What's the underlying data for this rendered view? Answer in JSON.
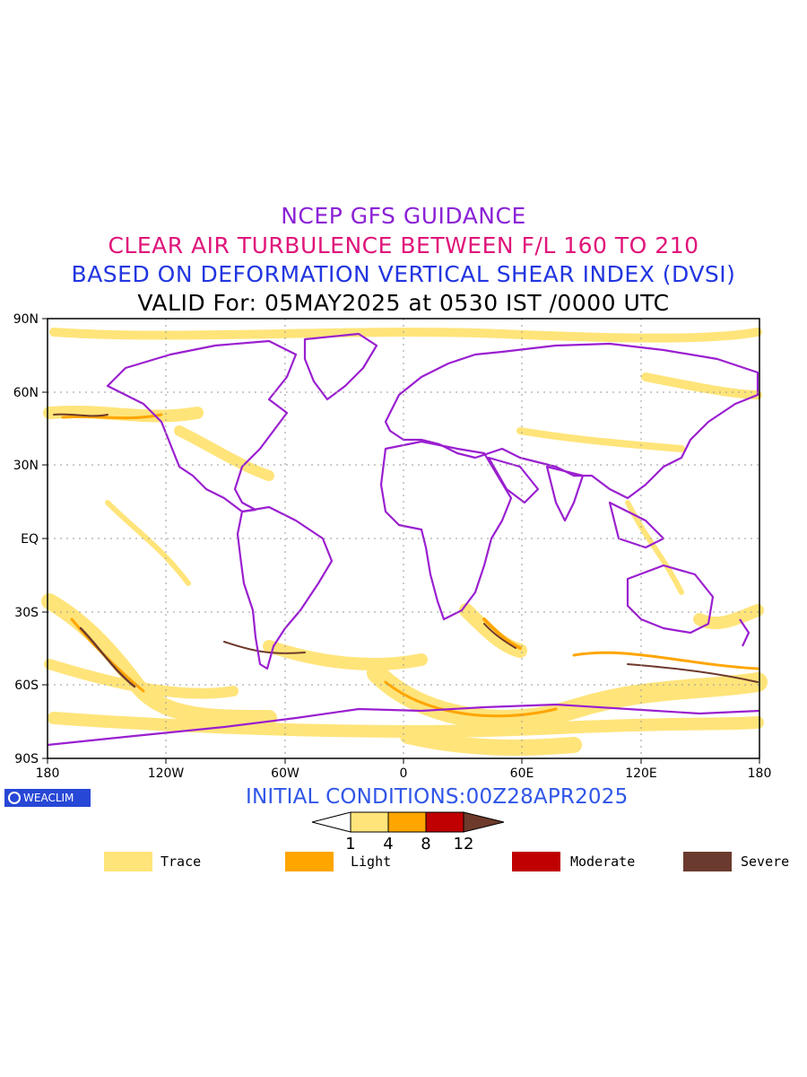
{
  "titles": {
    "line1": "NCEP GFS GUIDANCE",
    "line2": "CLEAR AIR TURBULENCE BETWEEN F/L 160 TO 210",
    "line3": "BASED ON DEFORMATION VERTICAL SHEAR INDEX (DVSI)",
    "line4": "VALID For: 05MAY2025 at 0530 IST /0000 UTC"
  },
  "axes": {
    "lat_labels": [
      "90N",
      "60N",
      "30N",
      "EQ",
      "30S",
      "60S",
      "90S"
    ],
    "lon_labels": [
      "180",
      "120W",
      "60W",
      "0",
      "60E",
      "120E",
      "180"
    ]
  },
  "initial_conditions": "INITIAL CONDITIONS:00Z28APR2025",
  "logo_text": "WEACLIM",
  "colorbar": {
    "ticks": [
      "1",
      "4",
      "8",
      "12"
    ],
    "colors": [
      "#ffffff",
      "#ffe47a",
      "#ffa500",
      "#c00000",
      "#6e3a2c"
    ]
  },
  "legend": [
    {
      "label": "Trace",
      "color": "#ffe47a"
    },
    {
      "label": "Light",
      "color": "#ffa500"
    },
    {
      "label": "Moderate",
      "color": "#c00000"
    },
    {
      "label": "Severe",
      "color": "#6b3a2e"
    }
  ],
  "colors": {
    "coastline": "#9a1fd0",
    "trace": "#ffe47a",
    "light": "#ffa500",
    "moderate": "#c00000",
    "severe": "#6e3a2c"
  }
}
